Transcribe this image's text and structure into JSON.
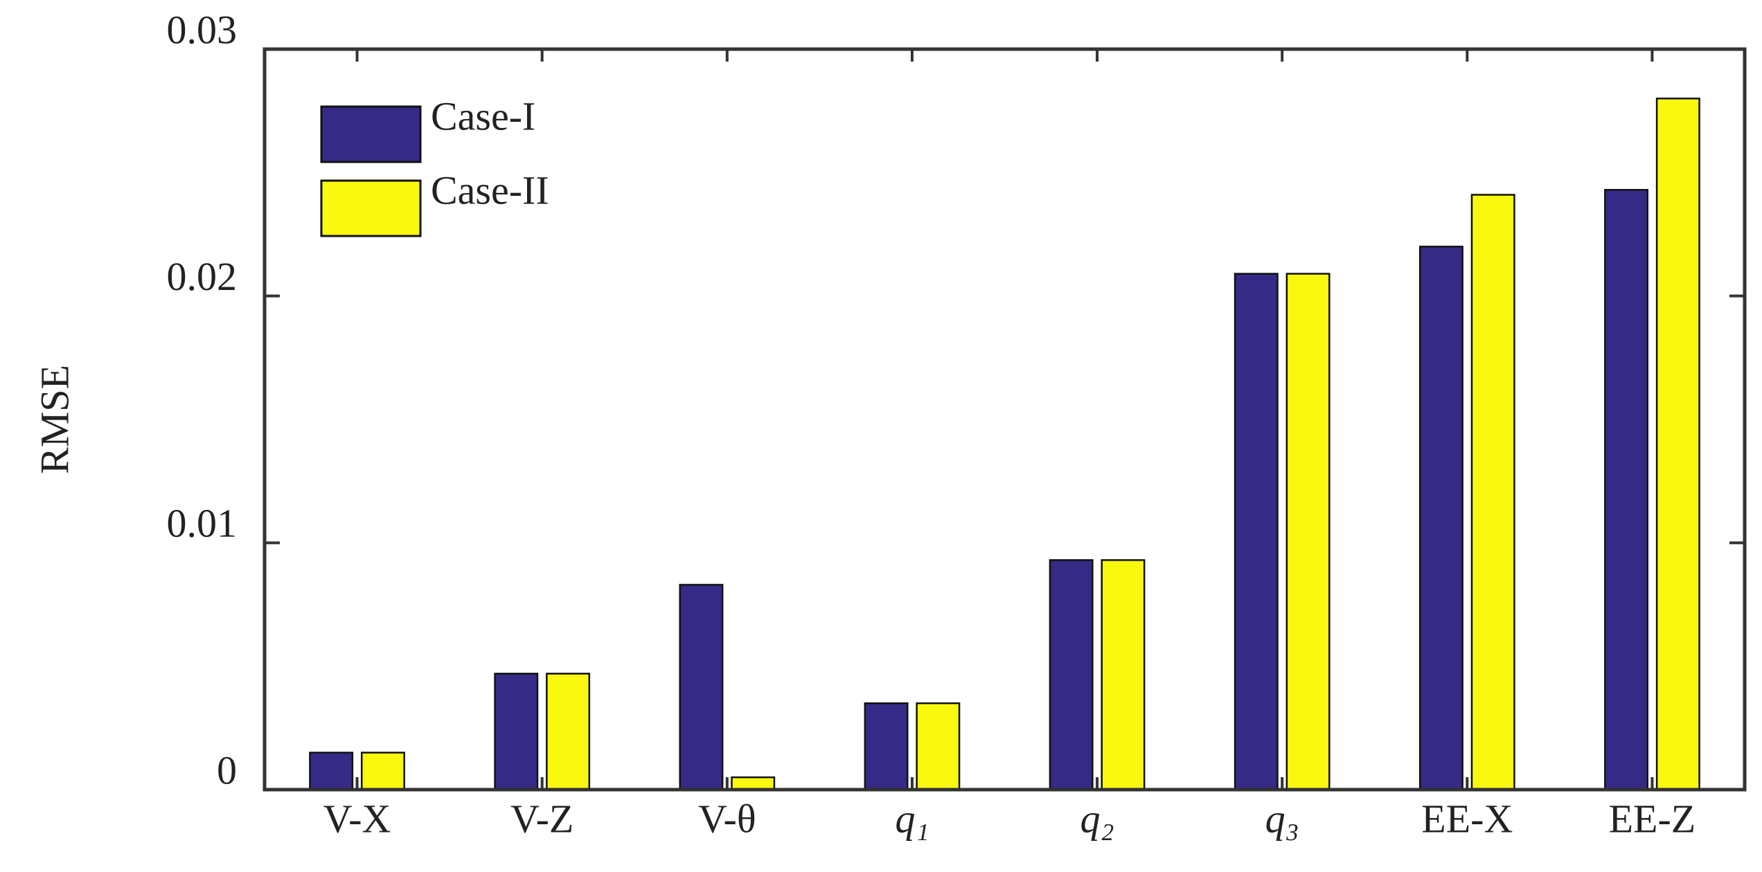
{
  "chart_data": {
    "type": "bar",
    "y_label": "RMSE",
    "categories": [
      "V-X",
      "V-Z",
      "V-θ",
      "q₁",
      "q₂",
      "q₃",
      "EE-X",
      "EE-Z"
    ],
    "series": [
      {
        "name": "Case-I",
        "color": "#352a86",
        "values": [
          0.0015,
          0.0047,
          0.0083,
          0.0035,
          0.0093,
          0.0209,
          0.022,
          0.0243
        ]
      },
      {
        "name": "Case-II",
        "color": "#f9f90f",
        "values": [
          0.0015,
          0.0047,
          0.0005,
          0.0035,
          0.0093,
          0.0209,
          0.0241,
          0.028
        ]
      }
    ],
    "ylim": [
      0,
      0.03
    ],
    "yticks": [
      0,
      0.01,
      0.02,
      0.03
    ],
    "grid": false,
    "legend": "upper-left"
  }
}
